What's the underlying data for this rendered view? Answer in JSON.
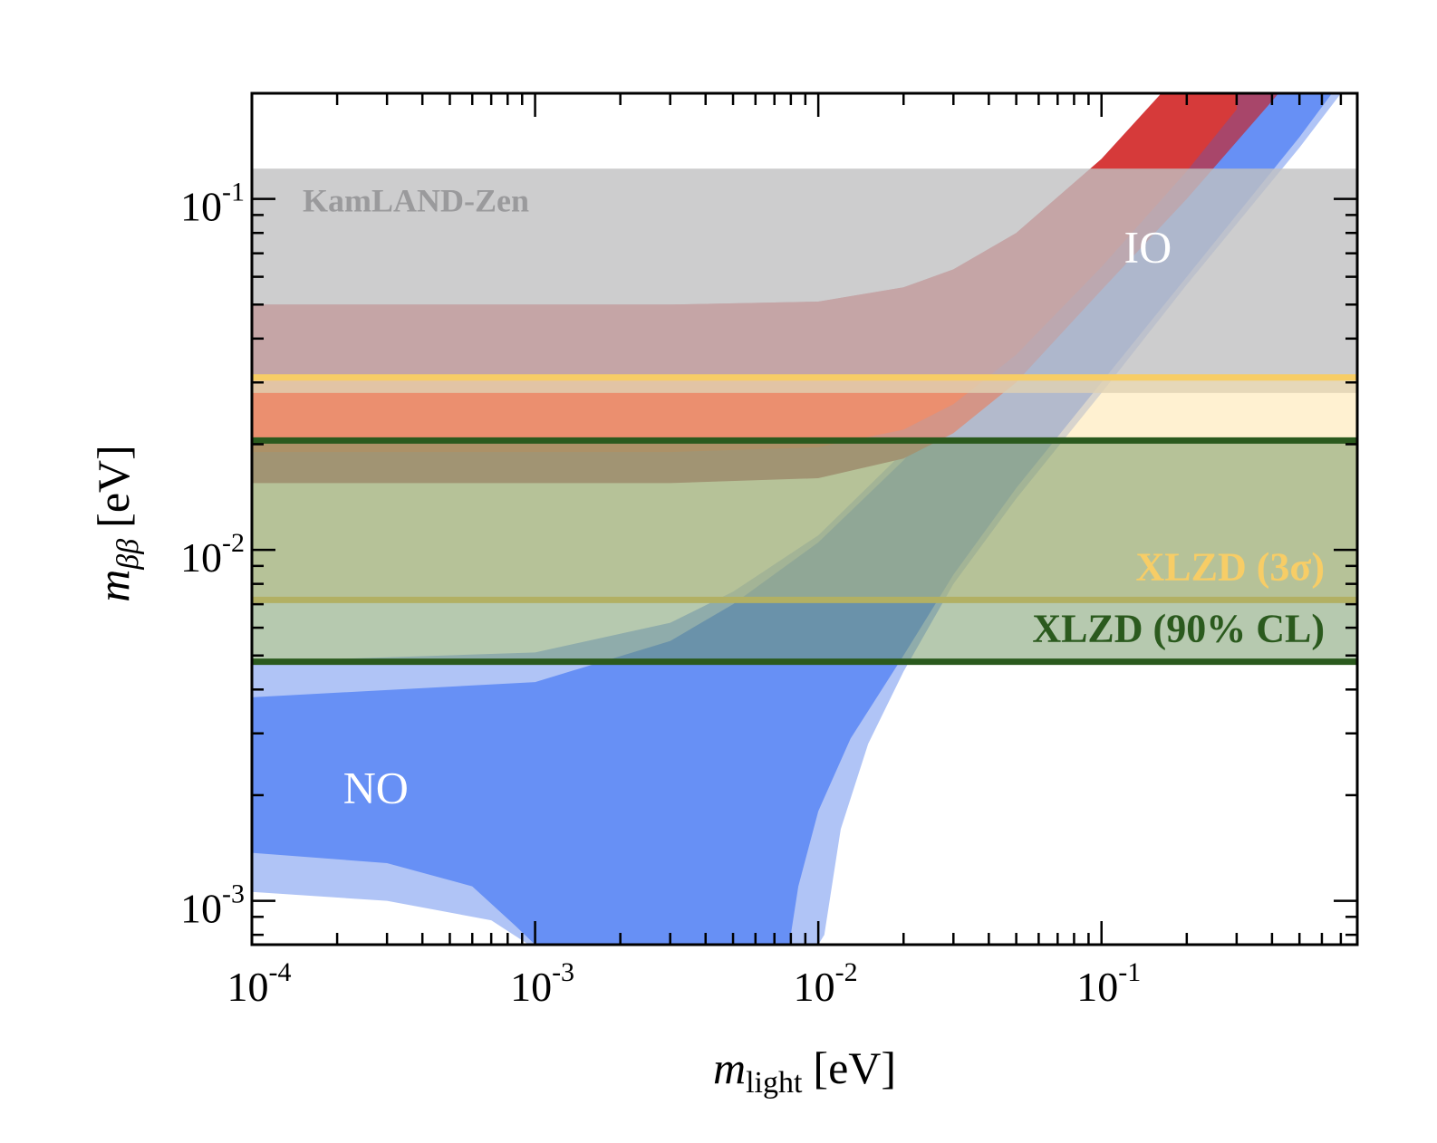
{
  "chart_data": {
    "type": "area",
    "title": "",
    "xlabel": {
      "symbol": "m",
      "subscript": "light",
      "unit": "[eV]"
    },
    "ylabel": {
      "symbol": "m",
      "subscript": "ββ",
      "unit": "[eV]"
    },
    "xscale": "log",
    "yscale": "log",
    "xlim": [
      0.0001,
      0.8
    ],
    "ylim": [
      0.00075,
      0.2
    ],
    "x_ticks": [
      {
        "value": 0.0001,
        "base": "10",
        "exp": "-4"
      },
      {
        "value": 0.001,
        "base": "10",
        "exp": "-3"
      },
      {
        "value": 0.01,
        "base": "10",
        "exp": "-2"
      },
      {
        "value": 0.1,
        "base": "10",
        "exp": "-1"
      }
    ],
    "y_ticks": [
      {
        "value": 0.001,
        "base": "10",
        "exp": "-3"
      },
      {
        "value": 0.01,
        "base": "10",
        "exp": "-2"
      },
      {
        "value": 0.1,
        "base": "10",
        "exp": "-1"
      }
    ],
    "grid": false,
    "regions": [
      {
        "key": "no_3sigma",
        "color": "#b0c4f6",
        "upper": {
          "x": [
            0.0001,
            0.001,
            0.003,
            0.005,
            0.01,
            0.02,
            0.05,
            0.1,
            0.2,
            0.5,
            0.8
          ],
          "y": [
            0.0048,
            0.0051,
            0.0062,
            0.0076,
            0.011,
            0.019,
            0.045,
            0.09,
            0.18,
            0.45,
            0.72
          ]
        },
        "lower": {
          "x": [
            0.0001,
            0.0003,
            0.0007,
            0.00095,
            0.0011,
            0.0015,
            0.0025,
            0.004,
            0.006,
            0.008,
            0.0095,
            0.01,
            0.0105,
            0.012,
            0.015,
            0.02,
            0.03,
            0.05,
            0.1,
            0.2,
            0.5,
            0.8
          ],
          "y": [
            0.00106,
            0.001,
            0.00088,
            0.00075,
            0.00075,
            0.00075,
            0.00075,
            0.00075,
            0.00075,
            0.00075,
            0.00075,
            0.00075,
            0.0008,
            0.0016,
            0.0028,
            0.0045,
            0.008,
            0.014,
            0.028,
            0.057,
            0.14,
            0.23
          ]
        }
      },
      {
        "key": "no_1sigma",
        "color": "#6790f5",
        "upper": {
          "x": [
            0.0001,
            0.001,
            0.003,
            0.005,
            0.01,
            0.02,
            0.05,
            0.1,
            0.2,
            0.5,
            0.8
          ],
          "y": [
            0.0038,
            0.0042,
            0.0055,
            0.007,
            0.0105,
            0.018,
            0.043,
            0.086,
            0.17,
            0.43,
            0.7
          ]
        },
        "lower": {
          "x": [
            0.0001,
            0.0003,
            0.0006,
            0.00085,
            0.001,
            0.002,
            0.004,
            0.006,
            0.0075,
            0.0079,
            0.0085,
            0.01,
            0.013,
            0.02,
            0.03,
            0.05,
            0.1,
            0.2,
            0.5,
            0.8
          ],
          "y": [
            0.00137,
            0.00128,
            0.0011,
            0.00085,
            0.00075,
            0.00075,
            0.00075,
            0.00075,
            0.00075,
            0.00075,
            0.0011,
            0.0018,
            0.0029,
            0.005,
            0.0085,
            0.015,
            0.03,
            0.06,
            0.15,
            0.25
          ]
        }
      },
      {
        "key": "io_3sigma",
        "color": "#a8466a",
        "upper": {
          "x": [
            0.0001,
            0.003,
            0.01,
            0.02,
            0.03,
            0.05,
            0.1,
            0.2,
            0.3
          ],
          "y": [
            0.05,
            0.05,
            0.051,
            0.056,
            0.063,
            0.08,
            0.13,
            0.24,
            0.35
          ]
        },
        "lower": {
          "x": [
            0.0001,
            0.003,
            0.01,
            0.02,
            0.03,
            0.05,
            0.1,
            0.2,
            0.4,
            0.8
          ],
          "y": [
            0.0155,
            0.0155,
            0.016,
            0.0182,
            0.0215,
            0.03,
            0.055,
            0.1,
            0.19,
            0.37
          ]
        }
      },
      {
        "key": "io_1sigma",
        "color": "#d63a3a",
        "upper": {
          "x": [
            0.0001,
            0.003,
            0.01,
            0.02,
            0.03,
            0.05,
            0.1,
            0.2,
            0.3
          ],
          "y": [
            0.05,
            0.05,
            0.051,
            0.056,
            0.063,
            0.08,
            0.13,
            0.24,
            0.35
          ]
        },
        "lower": {
          "x": [
            0.0001,
            0.003,
            0.01,
            0.02,
            0.03,
            0.05,
            0.1,
            0.2,
            0.3
          ],
          "y": [
            0.019,
            0.019,
            0.0196,
            0.022,
            0.026,
            0.036,
            0.064,
            0.12,
            0.18
          ]
        }
      }
    ],
    "limits": [
      {
        "key": "kamland",
        "label": "KamLAND-Zen",
        "y_range": [
          0.028,
          0.122
        ],
        "fill": "#c0c0c2",
        "opacity": 0.8,
        "label_color": "#9a9a9c"
      },
      {
        "key": "xlzd_3sigma",
        "label": "XLZD (3σ)",
        "y_range": [
          0.0072,
          0.031
        ],
        "fill": "#ffe4a3",
        "opacity": 0.5,
        "line": "#f7cd66",
        "label_color": "#f7cd66"
      },
      {
        "key": "xlzd_90cl",
        "label": "XLZD (90% CL)",
        "y_range": [
          0.0048,
          0.0205
        ],
        "fill": "#6d9460",
        "opacity": 0.5,
        "line": "#2b5a1e",
        "label_color": "#2b5a1e"
      }
    ],
    "annotations": [
      {
        "text": "NO",
        "x": 0.00021,
        "y": 0.0019
      },
      {
        "text": "IO",
        "x": 0.12,
        "y": 0.066
      }
    ]
  }
}
